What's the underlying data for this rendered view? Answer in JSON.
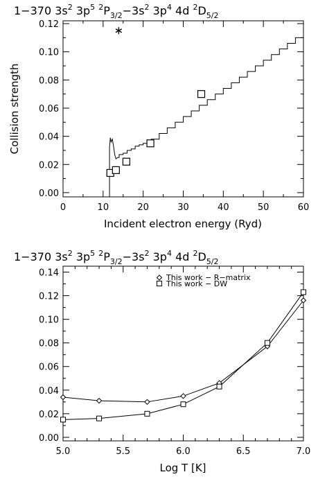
{
  "chart_data": [
    {
      "type": "line",
      "title": {
        "main": "1−370  3s",
        "sup1": "2",
        "p5": " 3p",
        "sup2": "5",
        "gap1": " ",
        "sup3": "2",
        "P": "P",
        "sub1": "3/2",
        "dash": "−3s",
        "sup4": "2",
        "p4": " 3p",
        "sup5": "4",
        "d": " 4d ",
        "sup6": "2",
        "D": "D",
        "sub2": "5/2"
      },
      "xlabel": "Incident electron energy (Ryd)",
      "ylabel": "Collision strength",
      "xlim": [
        0,
        60
      ],
      "ylim": [
        -0.003,
        0.122
      ],
      "xticks": [
        "0",
        "10",
        "20",
        "30",
        "40",
        "50",
        "60"
      ],
      "yticks": [
        "0.00",
        "0.02",
        "0.04",
        "0.06",
        "0.08",
        "0.10",
        "0.12"
      ],
      "series": [
        {
          "style": "step-line",
          "x": [
            11.6,
            11.6,
            11.8,
            12.0,
            12.3,
            12.6,
            12.9,
            13.2,
            13.6,
            14.0,
            15.0,
            16.0,
            17.0,
            18.0,
            19.0,
            20.0,
            21.0,
            22.0,
            24.0,
            26.0,
            28.0,
            30.0,
            32.0,
            34.0,
            36.0,
            38.0,
            40.0,
            42.0,
            44.0,
            46.0,
            48.0,
            50.0,
            52.0,
            54.0,
            56.0,
            58.0,
            60.0
          ],
          "y": [
            0.0,
            0.032,
            0.039,
            0.036,
            0.038,
            0.033,
            0.027,
            0.024,
            0.025,
            0.027,
            0.028,
            0.03,
            0.031,
            0.033,
            0.034,
            0.035,
            0.036,
            0.038,
            0.042,
            0.046,
            0.05,
            0.054,
            0.058,
            0.062,
            0.066,
            0.07,
            0.074,
            0.078,
            0.082,
            0.086,
            0.09,
            0.094,
            0.098,
            0.102,
            0.106,
            0.11,
            0.113
          ]
        },
        {
          "style": "square-markers",
          "x": [
            11.8,
            13.2,
            15.8,
            21.8,
            34.5
          ],
          "y": [
            0.014,
            0.016,
            0.022,
            0.035,
            0.07
          ]
        },
        {
          "style": "asterisk-marker",
          "x": [
            13.9
          ],
          "y": [
            0.115
          ]
        }
      ]
    },
    {
      "type": "line",
      "title": {
        "main": "1−370  3s",
        "sup1": "2",
        "p5": " 3p",
        "sup2": "5",
        "gap1": " ",
        "sup3": "2",
        "P": "P",
        "sub1": "3/2",
        "dash": "−3s",
        "sup4": "2",
        "p4": " 3p",
        "sup5": "4",
        "d": " 4d ",
        "sup6": "2",
        "D": "D",
        "sub2": "5/2"
      },
      "xlabel": "Log T [K]",
      "ylabel": "",
      "xlim": [
        5.0,
        7.0
      ],
      "ylim": [
        -0.003,
        0.145
      ],
      "xticks": [
        "5.0",
        "5.5",
        "6.0",
        "6.5",
        "7.0"
      ],
      "yticks": [
        "0.00",
        "0.02",
        "0.04",
        "0.06",
        "0.08",
        "0.10",
        "0.12",
        "0.14"
      ],
      "legend": {
        "position": "top-right",
        "entries": [
          "This work − R−matrix",
          "This work − DW"
        ]
      },
      "series": [
        {
          "name": "This work − R−matrix",
          "marker": "diamond",
          "x": [
            5.0,
            5.3,
            5.7,
            6.0,
            6.3,
            6.7,
            7.0
          ],
          "y": [
            0.034,
            0.031,
            0.03,
            0.035,
            0.046,
            0.077,
            0.116
          ]
        },
        {
          "name": "This work − DW",
          "marker": "square",
          "x": [
            5.0,
            5.3,
            5.7,
            6.0,
            6.3,
            6.7,
            7.0
          ],
          "y": [
            0.015,
            0.016,
            0.02,
            0.028,
            0.043,
            0.08,
            0.123
          ]
        }
      ]
    }
  ]
}
